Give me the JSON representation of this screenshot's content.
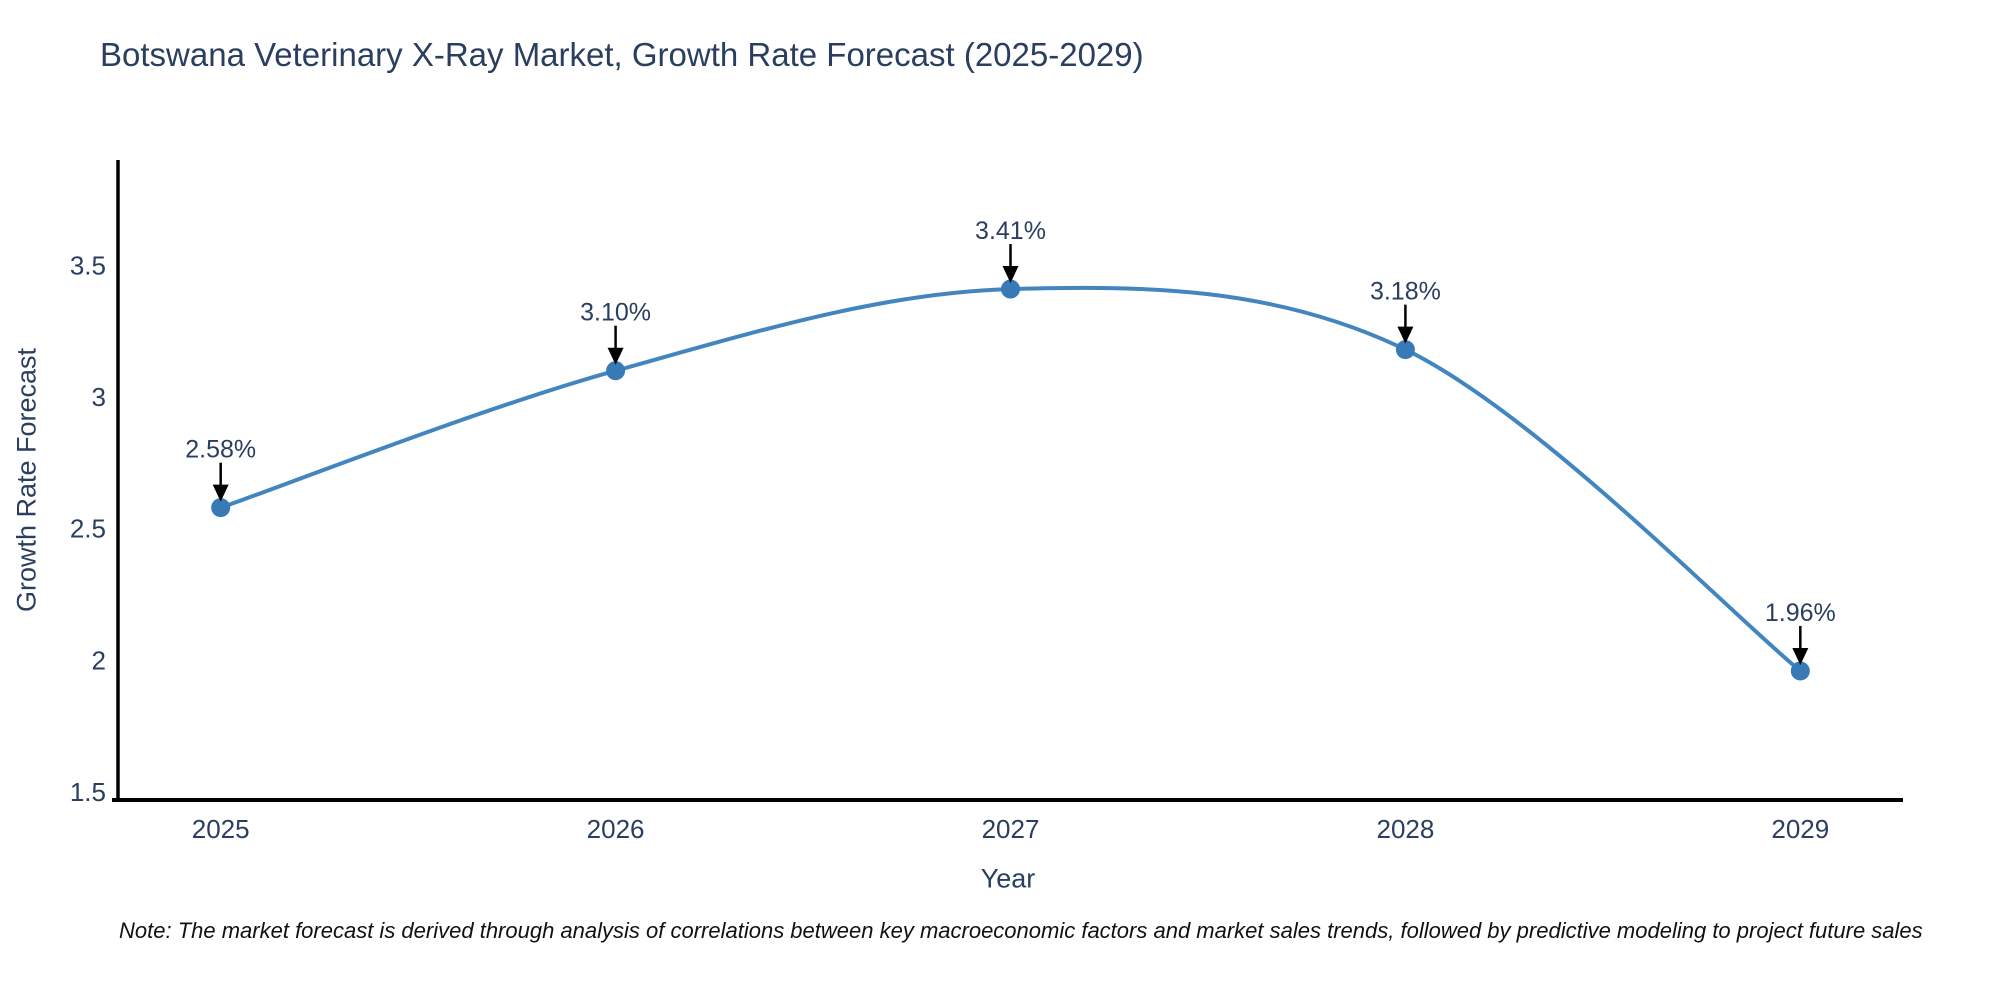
{
  "title": "Botswana Veterinary X-Ray Market, Growth Rate Forecast (2025-2029)",
  "note": "Note: The market forecast is derived through analysis of correlations between key macroeconomic factors and market sales trends, followed by predictive modeling to project future sales",
  "chart_data": {
    "type": "line",
    "title": "Botswana Veterinary X-Ray Market, Growth Rate Forecast (2025-2029)",
    "xlabel": "Year",
    "ylabel": "Growth Rate Forecast",
    "categories": [
      2025,
      2026,
      2027,
      2028,
      2029
    ],
    "series": [
      {
        "name": "Growth Rate Forecast",
        "values": [
          2.58,
          3.1,
          3.41,
          3.18,
          1.96
        ]
      }
    ],
    "point_labels": [
      "2.58%",
      "3.10%",
      "3.41%",
      "3.18%",
      "1.96%"
    ],
    "xtick_labels": [
      "2025",
      "2026",
      "2027",
      "2028",
      "2029"
    ],
    "ytick_values": [
      1.5,
      2.0,
      2.5,
      3.0,
      3.5
    ],
    "ytick_labels": [
      "1.5",
      "2",
      "2.5",
      "3",
      "3.5"
    ],
    "xlim": [
      2024.74,
      2029.26
    ],
    "ylim": [
      1.47,
      3.9
    ],
    "line_shape": "spline",
    "grid": false,
    "legend_position": "none",
    "annotations_style": "value label above point with down arrow",
    "colors": {
      "line": "#4386bf",
      "marker": "#377ab5",
      "arrow": "#000000",
      "axis_line": "#000000",
      "chart_text": "#2a3f5f",
      "note_text": "#111111",
      "background": "#ffffff"
    }
  }
}
